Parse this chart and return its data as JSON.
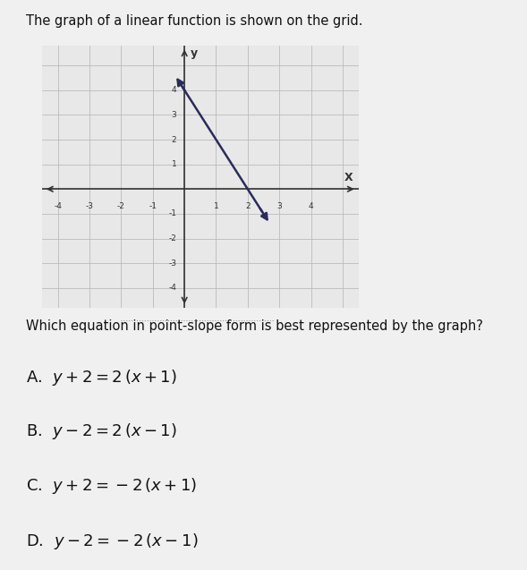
{
  "title": "The graph of a linear function is shown on the grid.",
  "question": "Which equation in point-slope form is best represented by the graph?",
  "choice_A": "A. y + 2 = 2 (x + 1)",
  "choice_B": "B. y − 2 = 2 (x − 1)",
  "choice_C": "C. y + 2 = −2 (x + 1)",
  "choice_D": "D. y − 2 = −2 (x − 1)",
  "line_slope": -2,
  "line_intercept": 4,
  "x_range": [
    -4.5,
    5.5
  ],
  "y_range": [
    -4.8,
    5.8
  ],
  "grid_color": "#bbbbbb",
  "axis_color": "#333333",
  "line_color": "#2b2b5a",
  "bg_color": "#f0f0f0",
  "graph_bg": "#e8e8e8",
  "text_color": "#111111"
}
